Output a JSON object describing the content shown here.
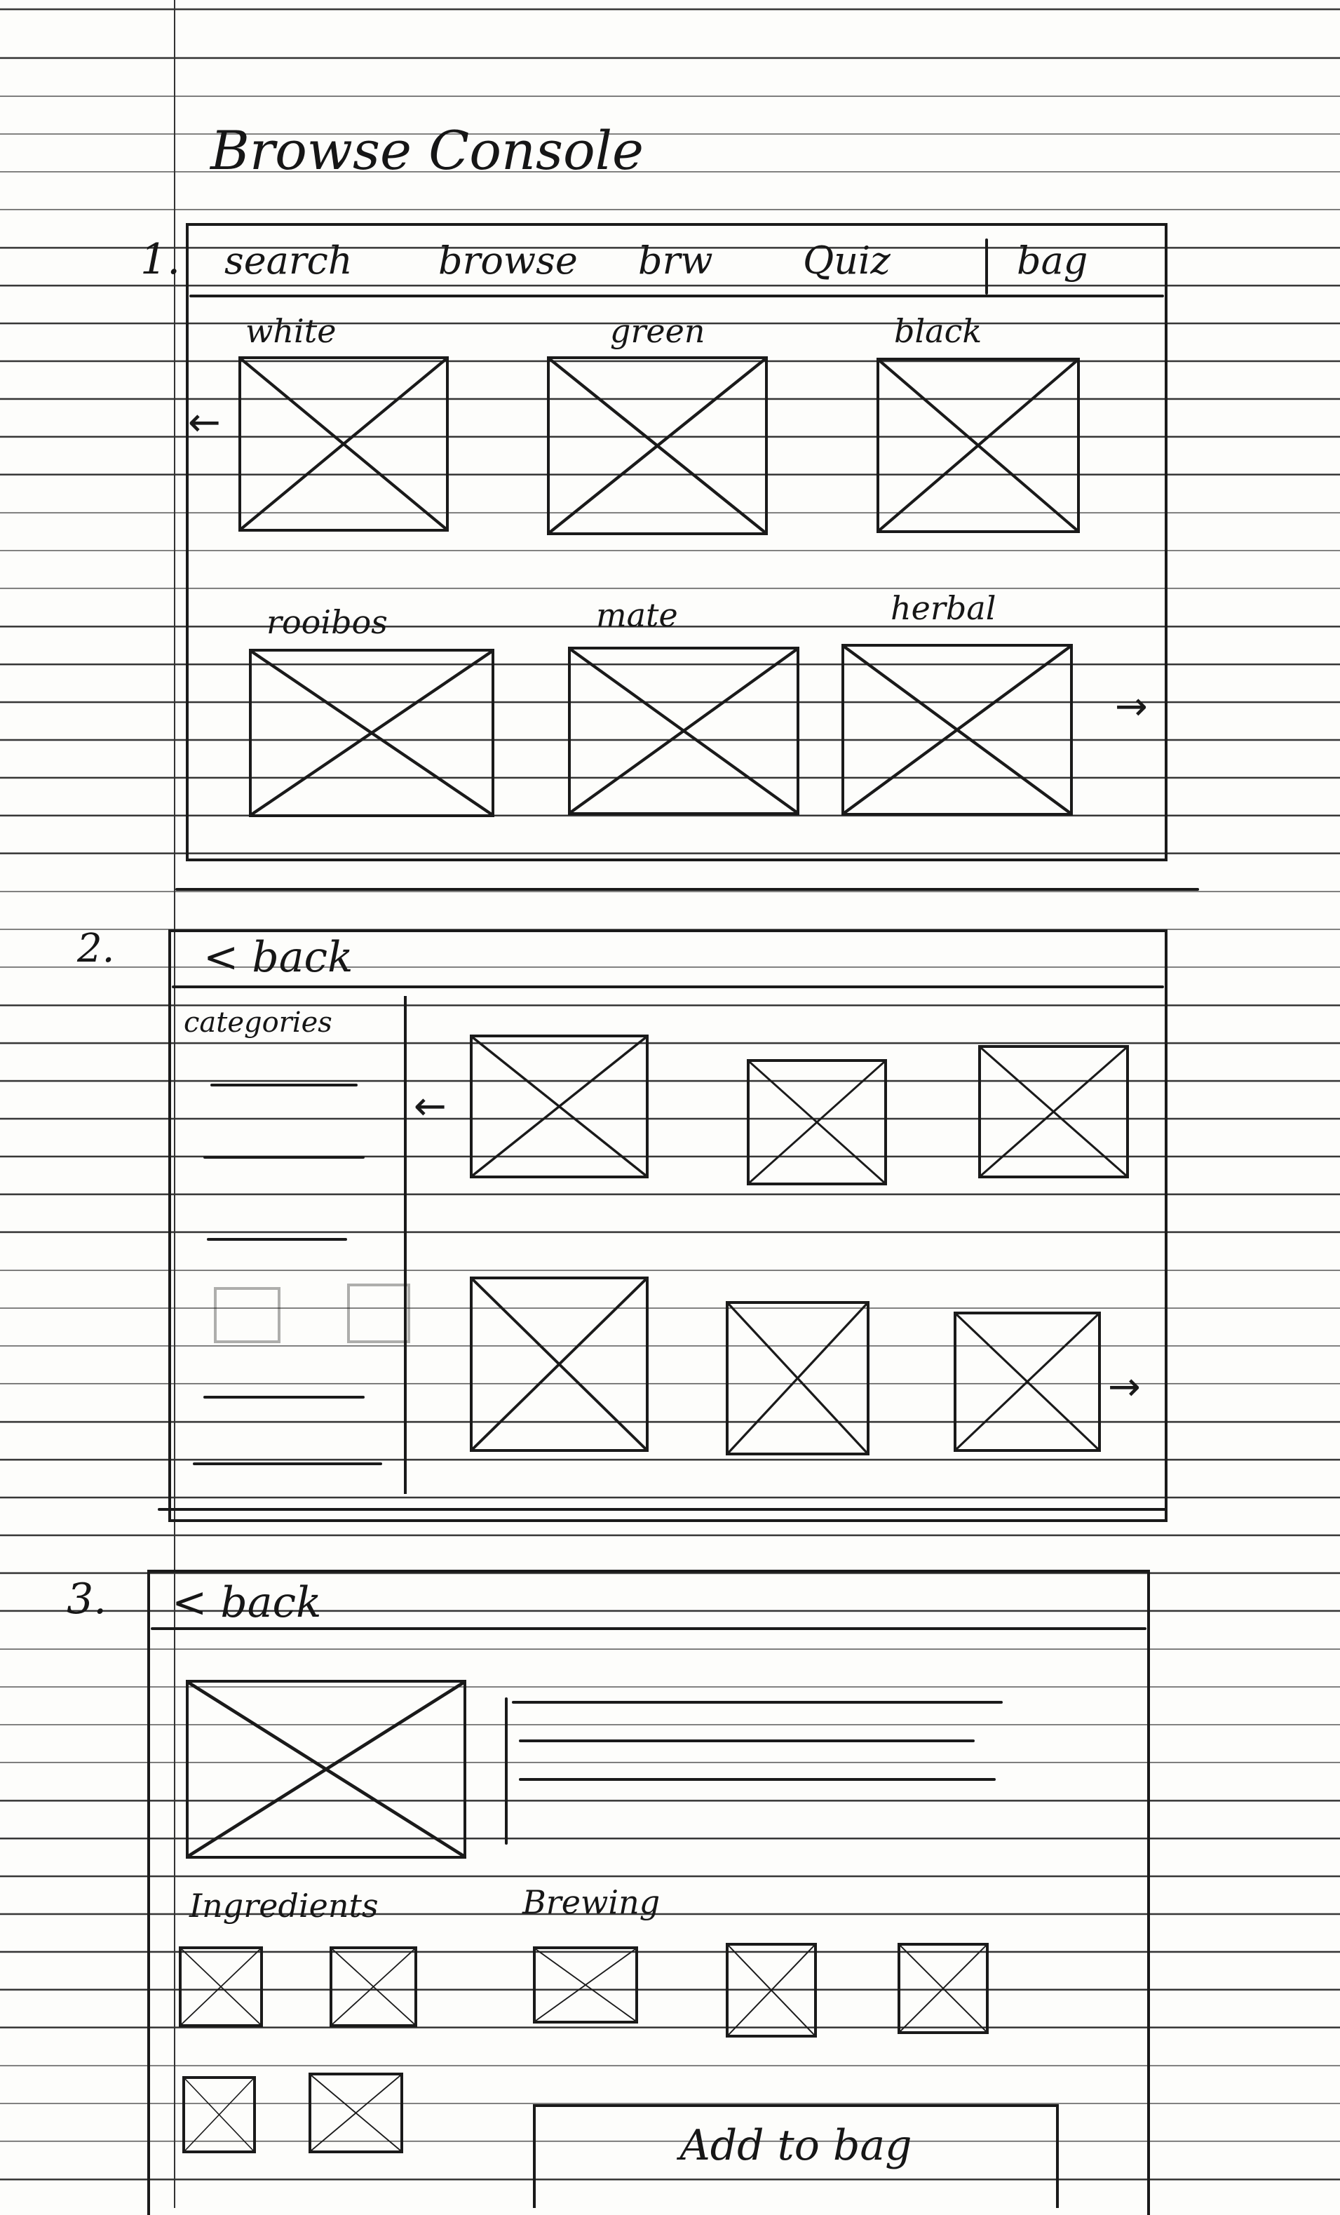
{
  "title": "Browse Console",
  "section_numbers": [
    "1.",
    "2.",
    "3."
  ],
  "nav": {
    "search": "search",
    "browse": "browse",
    "brew": "brw",
    "quiz": "Quiz",
    "bag": "bag"
  },
  "tea_categories": [
    "white",
    "green",
    "black",
    "rooibos",
    "mate",
    "herbal"
  ],
  "screen2": {
    "back_label": "< back",
    "categories_label": "categories"
  },
  "screen3": {
    "back_label": "< back",
    "ingredients_label": "Ingredients",
    "brewing_label": "Brewing",
    "add_button": "Add to bag"
  }
}
